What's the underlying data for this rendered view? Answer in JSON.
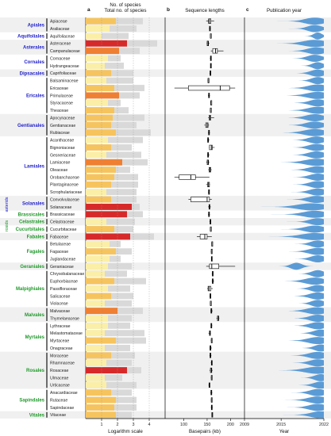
{
  "panels": {
    "a": {
      "letter": "a",
      "header_top": "No. of species",
      "header_bottom": "Total no. of species",
      "xlabel": "Logarithm scale",
      "ticks": [
        "1",
        "2",
        "3",
        "4"
      ]
    },
    "b": {
      "letter": "b",
      "header": "Sequence lengths",
      "xlabel": "Basepairs (kb)",
      "ticks": [
        "100",
        "150",
        "200"
      ]
    },
    "c": {
      "letter": "c",
      "header": "Publication year",
      "xlabel": "Year",
      "ticks": [
        "2009",
        "2015",
        "2022"
      ]
    }
  },
  "clade_labels": {
    "asterids": "asterids",
    "rosids": "rosids"
  },
  "colors": {
    "order_asterid": "#2222cc",
    "order_rosid": "#1f9a2a",
    "total_bar": "#d9d9d9",
    "violin": "#5b9bd5",
    "band": "#f0f0f0"
  },
  "orders": [
    {
      "name": "Apiales",
      "clade": "asterid",
      "families": [
        "Apiaceae",
        "Araliaceae"
      ]
    },
    {
      "name": "Aquifoliales",
      "clade": "asterid",
      "families": [
        "Aquifoliaceae"
      ]
    },
    {
      "name": "Asterales",
      "clade": "asterid",
      "families": [
        "Asteraceae",
        "Campanulaceae"
      ]
    },
    {
      "name": "Cornales",
      "clade": "asterid",
      "families": [
        "Cornaceae",
        "Hydrangeaceae"
      ]
    },
    {
      "name": "Dipsacales",
      "clade": "asterid",
      "families": [
        "Caprifoliaceae"
      ]
    },
    {
      "name": "Ericales",
      "clade": "asterid",
      "families": [
        "Balsaminaceae",
        "Ericaceae",
        "Primulaceae",
        "Styracaceae",
        "Theaceae"
      ]
    },
    {
      "name": "Gentianales",
      "clade": "asterid",
      "families": [
        "Apocynaceae",
        "Gentianaceae",
        "Rubiaceae"
      ]
    },
    {
      "name": "Lamiales",
      "clade": "asterid",
      "families": [
        "Acanthaceae",
        "Bignoniaceae",
        "Gesneriaceae",
        "Lamiaceae",
        "Oleaceae",
        "Orobanchaceae",
        "Plantaginaceae",
        "Scrophulariaceae"
      ]
    },
    {
      "name": "Solanales",
      "clade": "asterid",
      "families": [
        "Convolvulaceae",
        "Solanaceae"
      ]
    },
    {
      "name": "Brassicales",
      "clade": "rosid",
      "families": [
        "Brassicaceae"
      ]
    },
    {
      "name": "Celastrales",
      "clade": "rosid",
      "families": [
        "Celastraceae"
      ]
    },
    {
      "name": "Cucurbitales",
      "clade": "rosid",
      "families": [
        "Cucurbitaceae"
      ]
    },
    {
      "name": "Fabales",
      "clade": "rosid",
      "families": [
        "Fabaceae"
      ]
    },
    {
      "name": "Fagales",
      "clade": "rosid",
      "families": [
        "Betulaceae",
        "Fagaceae",
        "Juglandaceae"
      ]
    },
    {
      "name": "Geraniales",
      "clade": "rosid",
      "families": [
        "Geraniaceae"
      ]
    },
    {
      "name": "Malpighiales",
      "clade": "rosid",
      "families": [
        "Chrysobalanaceae",
        "Euphorbiaceae",
        "Passifloraceae",
        "Salicaceae",
        "Violaceae"
      ]
    },
    {
      "name": "Malvales",
      "clade": "rosid",
      "families": [
        "Malvaceae",
        "Thymelaeaceae"
      ]
    },
    {
      "name": "Myrtales",
      "clade": "rosid",
      "families": [
        "Lythraceae",
        "Melastomataceae",
        "Myrtaceae",
        "Onagraceae"
      ]
    },
    {
      "name": "Rosales",
      "clade": "rosid",
      "families": [
        "Moraceae",
        "Rhamnaceae",
        "Rosaceae",
        "Ulmaceae",
        "Urticaceae"
      ]
    },
    {
      "name": "Sapindales",
      "clade": "rosid",
      "families": [
        "Anacardiaceae",
        "Rutaceae",
        "Sapindaceae"
      ]
    },
    {
      "name": "Vitales",
      "clade": "rosid",
      "families": [
        "Vitaceae"
      ]
    }
  ],
  "chart_data": [
    {
      "type": "bar",
      "panel": "a",
      "xlabel": "Logarithm scale",
      "x_scale": "log10",
      "xlim": [
        0,
        4.6
      ],
      "categories": [
        "Apiaceae",
        "Araliaceae",
        "Aquifoliaceae",
        "Asteraceae",
        "Campanulaceae",
        "Cornaceae",
        "Hydrangeaceae",
        "Caprifoliaceae",
        "Balsaminaceae",
        "Ericaceae",
        "Primulaceae",
        "Styracaceae",
        "Theaceae",
        "Apocynaceae",
        "Gentianaceae",
        "Rubiaceae",
        "Acanthaceae",
        "Bignoniaceae",
        "Gesneriaceae",
        "Lamiaceae",
        "Oleaceae",
        "Orobanchaceae",
        "Plantaginaceae",
        "Scrophulariaceae",
        "Convolvulaceae",
        "Solanaceae",
        "Brassicaceae",
        "Celastraceae",
        "Cucurbitaceae",
        "Fabaceae",
        "Betulaceae",
        "Fagaceae",
        "Juglandaceae",
        "Geraniaceae",
        "Chrysobalanaceae",
        "Euphorbiaceae",
        "Passifloraceae",
        "Salicaceae",
        "Violaceae",
        "Malvaceae",
        "Thymelaeaceae",
        "Lythraceae",
        "Melastomataceae",
        "Myrtaceae",
        "Onagraceae",
        "Moraceae",
        "Rhamnaceae",
        "Rosaceae",
        "Ulmaceae",
        "Urticaceae",
        "Anacardiaceae",
        "Rutaceae",
        "Sapindaceae",
        "Vitaceae"
      ],
      "series": [
        {
          "name": "No. of species",
          "values": [
            1.9,
            1.5,
            1.0,
            2.6,
            2.1,
            1.4,
            1.2,
            1.6,
            1.3,
            1.8,
            2.1,
            1.4,
            1.8,
            1.7,
            1.6,
            1.9,
            1.4,
            1.6,
            1.3,
            2.3,
            1.9,
            1.8,
            1.6,
            1.3,
            1.6,
            2.9,
            2.6,
            1.3,
            1.8,
            2.8,
            1.5,
            1.9,
            1.5,
            1.4,
            1.2,
            1.8,
            1.4,
            1.6,
            1.2,
            2.0,
            1.4,
            1.4,
            1.2,
            1.9,
            1.2,
            1.6,
            1.3,
            2.6,
            1.2,
            1.3,
            1.6,
            1.9,
            1.8,
            1.9
          ]
        },
        {
          "name": "Total no. of species",
          "values": [
            3.6,
            3.2,
            2.7,
            4.5,
            3.4,
            2.2,
            2.4,
            3.0,
            3.0,
            3.7,
            3.4,
            2.2,
            2.7,
            3.7,
            3.2,
            4.1,
            3.6,
            2.9,
            3.5,
            3.9,
            2.8,
            3.3,
            3.3,
            3.2,
            3.2,
            3.4,
            3.6,
            3.1,
            3.0,
            4.3,
            2.2,
            2.9,
            2.2,
            2.9,
            2.6,
            3.8,
            2.8,
            3.0,
            2.9,
            3.6,
            2.9,
            2.8,
            3.7,
            3.8,
            2.8,
            3.1,
            2.9,
            3.5,
            2.3,
            3.2,
            2.9,
            3.2,
            3.2,
            2.9
          ]
        }
      ]
    },
    {
      "type": "box",
      "panel": "b",
      "xlabel": "Basepairs (kb)",
      "xlim": [
        60,
        230
      ],
      "note": "values [min, q1, median, q3, max] in kb per family, same category order as panel a",
      "values": [
        [
          148,
          153,
          155,
          158,
          165
        ],
        [
          154,
          155,
          156,
          157,
          158
        ],
        [
          157,
          157,
          157,
          158,
          158
        ],
        [
          149,
          150,
          152,
          153,
          155
        ],
        [
          158,
          162,
          168,
          172,
          185
        ],
        [
          156,
          157,
          158,
          158,
          159
        ],
        [
          157,
          157,
          158,
          158,
          159
        ],
        [
          155,
          156,
          157,
          157,
          158
        ],
        [
          151,
          152,
          152,
          153,
          153
        ],
        [
          80,
          110,
          178,
          198,
          210
        ],
        [
          152,
          153,
          154,
          155,
          156
        ],
        [
          157,
          158,
          158,
          158,
          159
        ],
        [
          156,
          157,
          157,
          158,
          159
        ],
        [
          152,
          154,
          156,
          158,
          165
        ],
        [
          144,
          147,
          150,
          152,
          154
        ],
        [
          152,
          153,
          154,
          155,
          156
        ],
        [
          150,
          151,
          152,
          153,
          155
        ],
        [
          154,
          155,
          159,
          161,
          166
        ],
        [
          150,
          151,
          152,
          153,
          155
        ],
        [
          148,
          150,
          152,
          153,
          155
        ],
        [
          152,
          154,
          156,
          158,
          160
        ],
        [
          80,
          90,
          115,
          125,
          155
        ],
        [
          148,
          151,
          153,
          155,
          156
        ],
        [
          152,
          153,
          154,
          155,
          155
        ],
        [
          110,
          115,
          150,
          155,
          160
        ],
        [
          152,
          154,
          155,
          156,
          158
        ],
        [
          152,
          153,
          154,
          155,
          156
        ],
        [
          155,
          156,
          157,
          158,
          158
        ],
        [
          156,
          157,
          157,
          158,
          158
        ],
        [
          128,
          135,
          145,
          150,
          160
        ],
        [
          159,
          160,
          160,
          161,
          161
        ],
        [
          158,
          159,
          159,
          160,
          161
        ],
        [
          159,
          159,
          160,
          160,
          161
        ],
        [
          148,
          155,
          160,
          175,
          210
        ],
        [
          160,
          161,
          162,
          162,
          163
        ],
        [
          160,
          161,
          162,
          163,
          165
        ],
        [
          150,
          152,
          154,
          158,
          162
        ],
        [
          155,
          156,
          157,
          157,
          158
        ],
        [
          156,
          157,
          157,
          158,
          158
        ],
        [
          157,
          158,
          159,
          160,
          162
        ],
        [
          170,
          172,
          174,
          175,
          176
        ],
        [
          158,
          158,
          159,
          160,
          161
        ],
        [
          153,
          155,
          156,
          157,
          158
        ],
        [
          158,
          159,
          159,
          160,
          161
        ],
        [
          155,
          156,
          157,
          158,
          160
        ],
        [
          155,
          156,
          157,
          158,
          159
        ],
        [
          158,
          159,
          160,
          160,
          161
        ],
        [
          155,
          157,
          159,
          160,
          162
        ],
        [
          158,
          159,
          159,
          160,
          160
        ],
        [
          153,
          154,
          155,
          155,
          156
        ],
        [
          157,
          158,
          159,
          160,
          161
        ],
        [
          158,
          159,
          159,
          160,
          161
        ],
        [
          158,
          159,
          160,
          161,
          162
        ],
        [
          160,
          160,
          161,
          161,
          161
        ]
      ]
    },
    {
      "type": "violin",
      "panel": "c",
      "xlabel": "Year",
      "xlim": [
        2009,
        2022
      ],
      "note": "peak publication year and relative spread per family, same category order as panel a",
      "values": [
        [
          2020.5,
          2.2
        ],
        [
          2020.5,
          1.6
        ],
        [
          2021.0,
          0.9
        ],
        [
          2020.5,
          2.6
        ],
        [
          2020.8,
          2.0
        ],
        [
          2020.5,
          1.6
        ],
        [
          2021.0,
          1.2
        ],
        [
          2021.0,
          1.6
        ],
        [
          2021.0,
          1.4
        ],
        [
          2021.0,
          2.2
        ],
        [
          2021.0,
          2.4
        ],
        [
          2021.0,
          1.8
        ],
        [
          2021.0,
          2.2
        ],
        [
          2020.5,
          2.0
        ],
        [
          2020.5,
          2.0
        ],
        [
          2020.5,
          2.4
        ],
        [
          2020.8,
          1.8
        ],
        [
          2020.8,
          1.8
        ],
        [
          2020.8,
          1.8
        ],
        [
          2020.8,
          2.6
        ],
        [
          2021.0,
          2.0
        ],
        [
          2021.0,
          1.8
        ],
        [
          2021.0,
          1.8
        ],
        [
          2021.0,
          1.8
        ],
        [
          2020.8,
          2.0
        ],
        [
          2020.0,
          3.2
        ],
        [
          2020.5,
          2.6
        ],
        [
          2021.0,
          1.8
        ],
        [
          2020.5,
          2.2
        ],
        [
          2020.5,
          3.0
        ],
        [
          2021.0,
          1.6
        ],
        [
          2021.0,
          2.0
        ],
        [
          2021.0,
          1.6
        ],
        [
          2017.5,
          1.2
        ],
        [
          2021.0,
          1.4
        ],
        [
          2020.5,
          2.2
        ],
        [
          2021.0,
          1.6
        ],
        [
          2021.0,
          1.8
        ],
        [
          2021.0,
          1.4
        ],
        [
          2020.8,
          2.2
        ],
        [
          2021.0,
          1.8
        ],
        [
          2021.0,
          1.8
        ],
        [
          2021.5,
          1.6
        ],
        [
          2021.0,
          2.2
        ],
        [
          2021.5,
          1.4
        ],
        [
          2021.0,
          2.0
        ],
        [
          2021.0,
          1.8
        ],
        [
          2021.0,
          2.8
        ],
        [
          2021.5,
          1.4
        ],
        [
          2021.5,
          1.6
        ],
        [
          2021.0,
          1.8
        ],
        [
          2021.0,
          2.2
        ],
        [
          2021.0,
          2.0
        ],
        [
          2021.5,
          2.2
        ]
      ]
    }
  ]
}
